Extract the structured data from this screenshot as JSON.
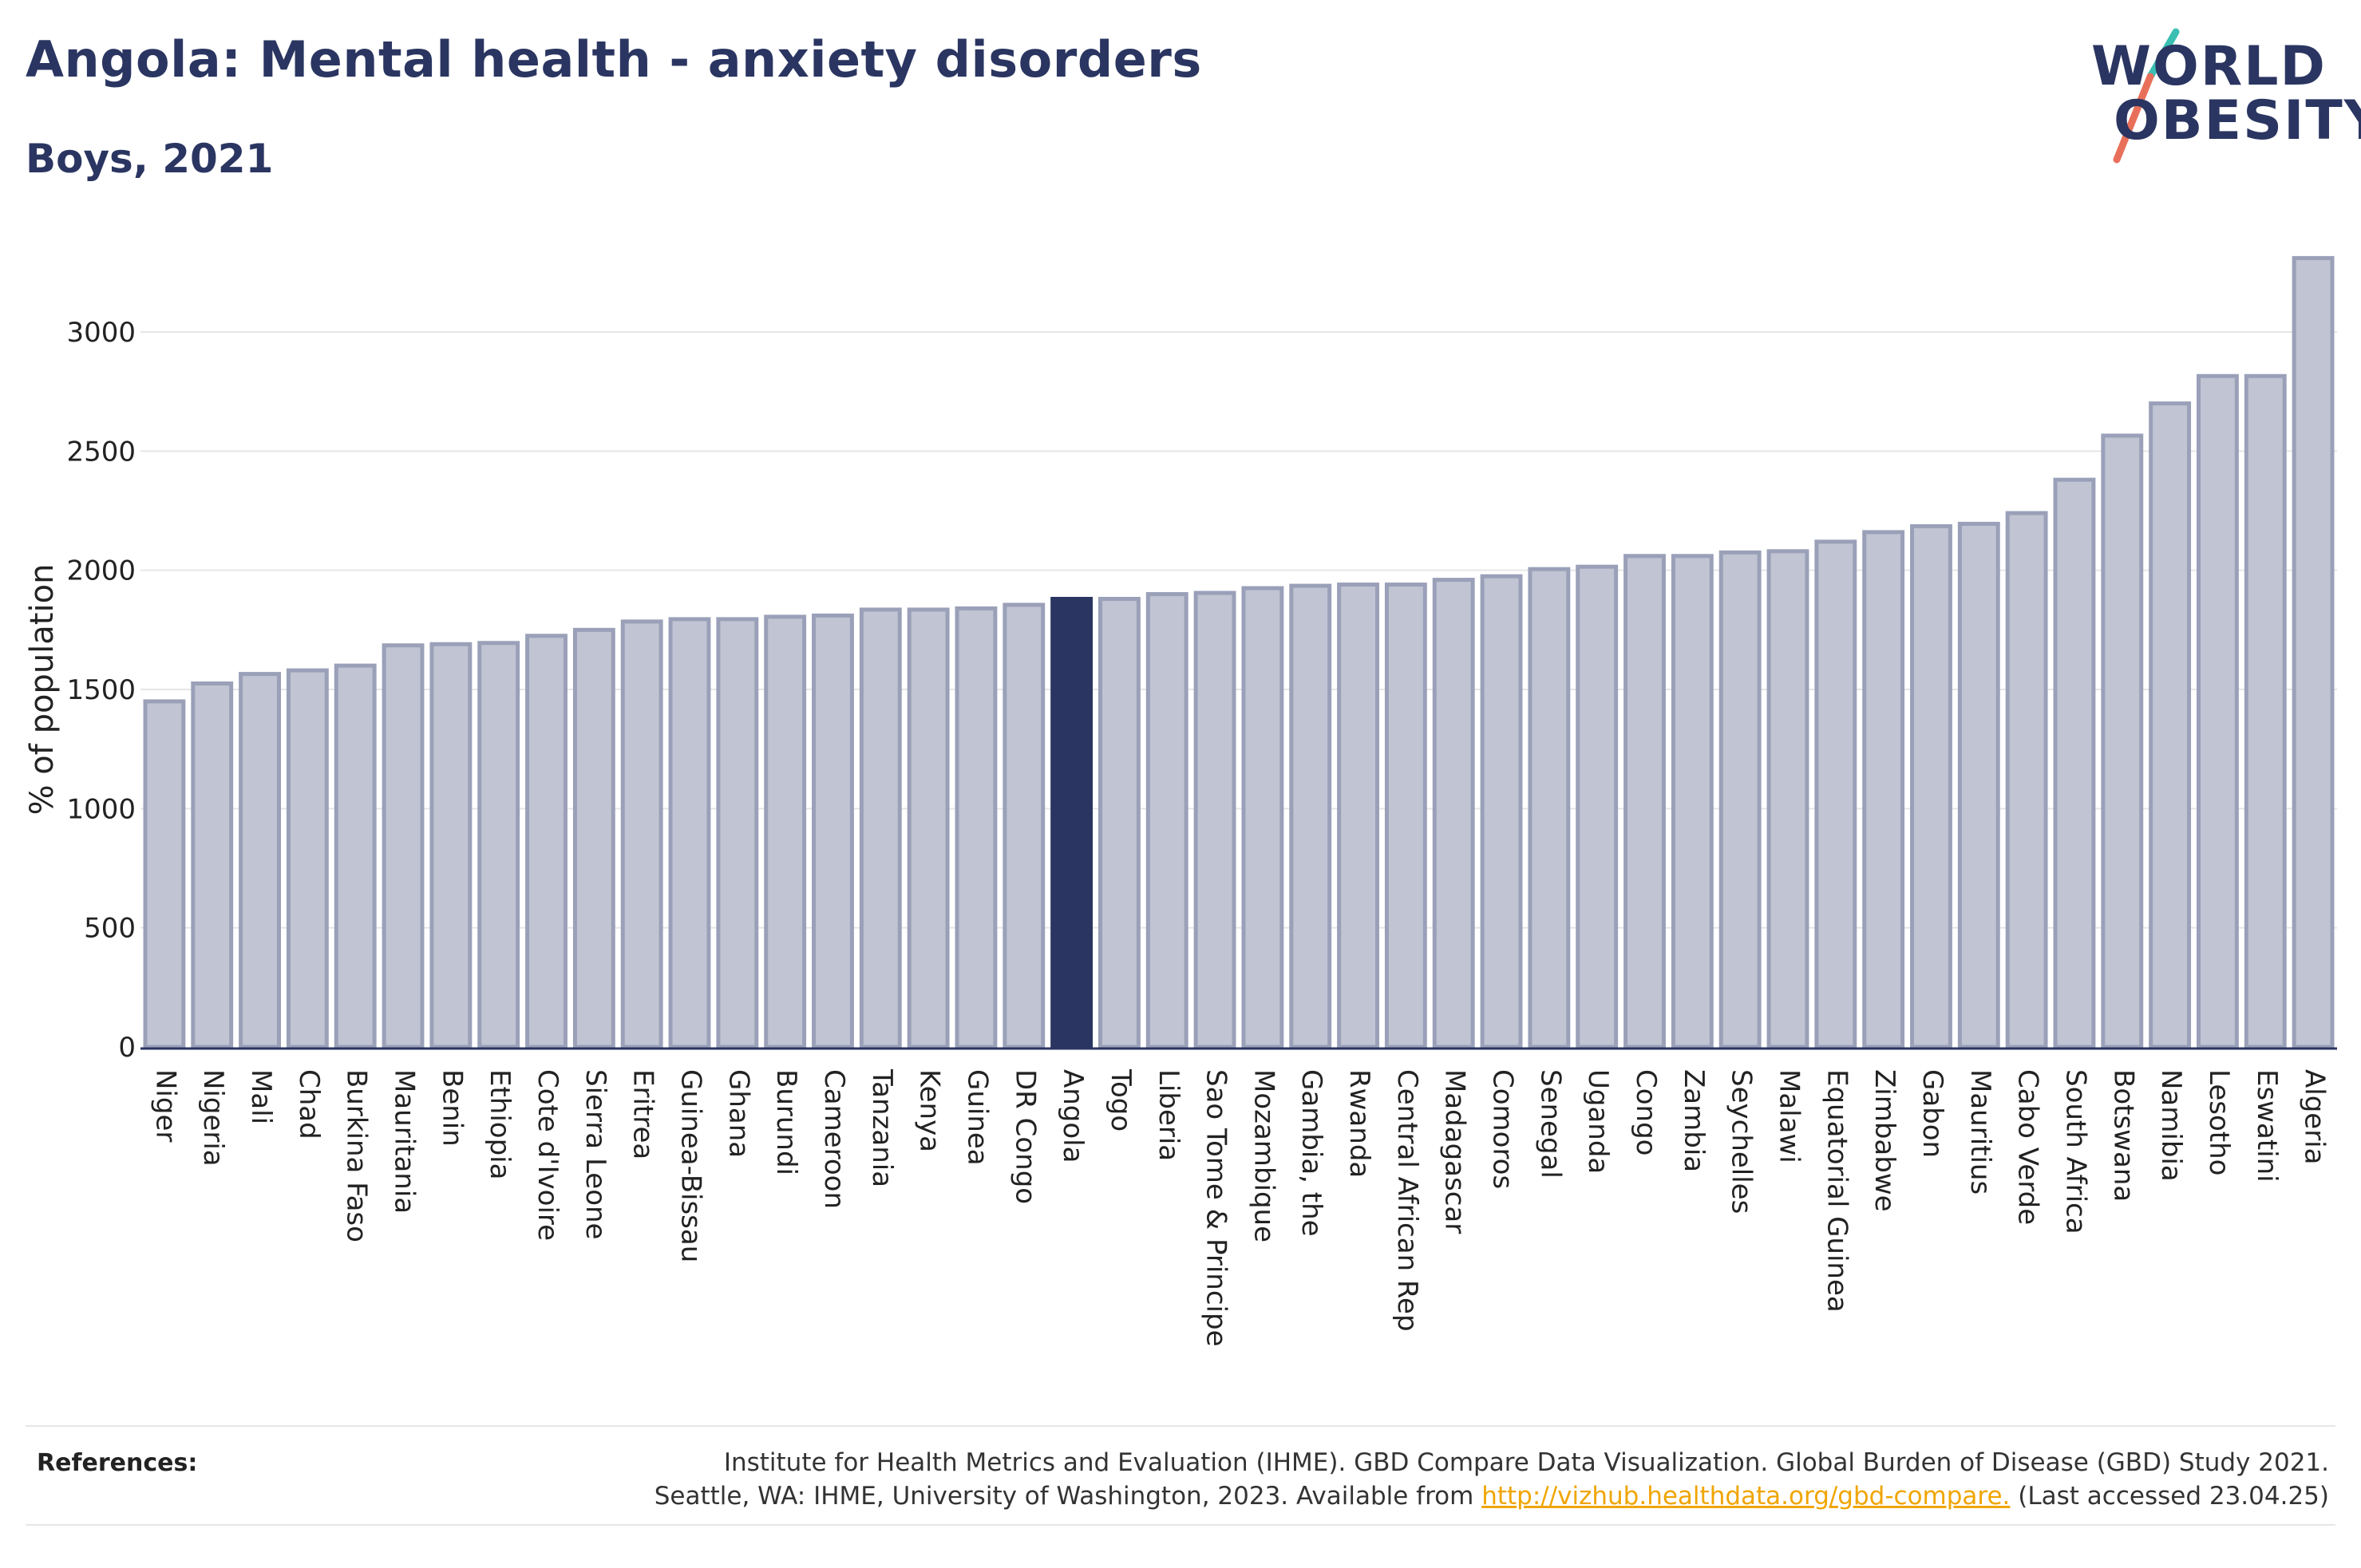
{
  "header": {
    "title": "Angola: Mental health - anxiety disorders",
    "subtitle": "Boys, 2021"
  },
  "logo": {
    "line1": "WORLD",
    "line2": "OBESITY",
    "colors": {
      "text": "#2a3561",
      "slash_top": "#3bbfb3",
      "slash_bottom": "#e8705a"
    }
  },
  "colors": {
    "bar_fill": "#c0c4d3",
    "bar_stroke": "#9aa0b8",
    "highlight": "#2a3561",
    "grid": "#e6e6e6",
    "axis_text": "#222222"
  },
  "chart_data": {
    "type": "bar",
    "title": "Angola: Mental health - anxiety disorders",
    "subtitle": "Boys, 2021",
    "xlabel": "",
    "ylabel": "% of population",
    "ylim": [
      0,
      3300
    ],
    "yticks": [
      0,
      500,
      1000,
      1500,
      2000,
      2500,
      3000
    ],
    "grid": true,
    "highlight": "Angola",
    "categories": [
      "Niger",
      "Nigeria",
      "Mali",
      "Chad",
      "Burkina Faso",
      "Mauritania",
      "Benin",
      "Ethiopia",
      "Cote d'Ivoire",
      "Sierra Leone",
      "Eritrea",
      "Guinea-Bissau",
      "Ghana",
      "Burundi",
      "Cameroon",
      "Tanzania",
      "Kenya",
      "Guinea",
      "DR Congo",
      "Angola",
      "Togo",
      "Liberia",
      "Sao Tome & Principe",
      "Mozambique",
      "Gambia, the",
      "Rwanda",
      "Central African Rep",
      "Madagascar",
      "Comoros",
      "Senegal",
      "Uganda",
      "Congo",
      "Zambia",
      "Seychelles",
      "Malawi",
      "Equatorial Guinea",
      "Zimbabwe",
      "Gabon",
      "Mauritius",
      "Cabo Verde",
      "South Africa",
      "Botswana",
      "Namibia",
      "Lesotho",
      "Eswatini",
      "Algeria"
    ],
    "values": [
      1450,
      1525,
      1565,
      1580,
      1600,
      1685,
      1690,
      1695,
      1725,
      1750,
      1785,
      1795,
      1795,
      1805,
      1810,
      1835,
      1835,
      1840,
      1855,
      1880,
      1880,
      1900,
      1905,
      1925,
      1935,
      1940,
      1940,
      1960,
      1975,
      2005,
      2015,
      2060,
      2060,
      2075,
      2080,
      2120,
      2160,
      2185,
      2195,
      2240,
      2380,
      2565,
      2700,
      2815,
      2815,
      3310
    ]
  },
  "footer": {
    "references_label": "References:",
    "ref_line1": "Institute for Health Metrics and Evaluation (IHME). GBD Compare Data Visualization. Global Burden of Disease (GBD) Study 2021.",
    "ref_line2_pre": "Seattle, WA: IHME, University of Washington, 2023. Available from ",
    "ref_link": "http://vizhub.healthdata.org/gbd-compare.",
    "ref_line2_post": " (Last accessed 23.04.25)"
  }
}
